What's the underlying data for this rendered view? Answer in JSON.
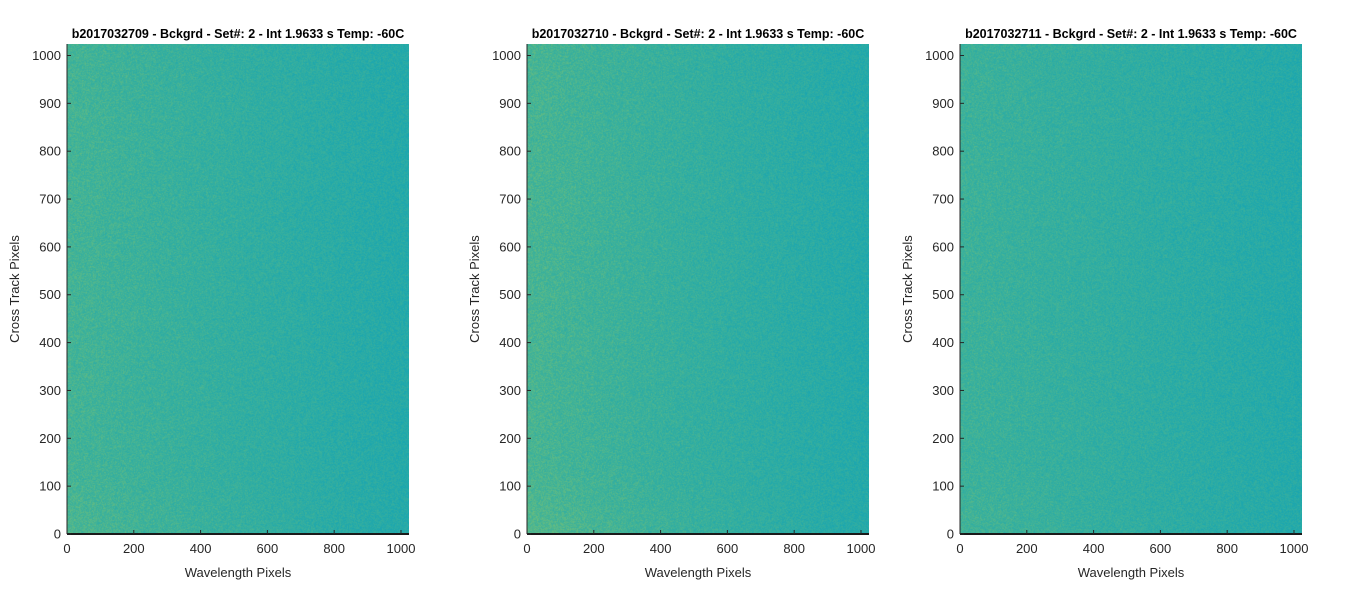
{
  "chart_data": [
    {
      "type": "heatmap",
      "title": "b2017032709 - Bckgrd - Set#: 2 - Int 1.9633 s Temp: -60C",
      "xlabel": "Wavelength Pixels",
      "ylabel": "Cross Track Pixels",
      "xlim": [
        0,
        1024
      ],
      "ylim": [
        0,
        1024
      ],
      "xticks": [
        0,
        200,
        400,
        600,
        800,
        1000
      ],
      "yticks": [
        0,
        100,
        200,
        300,
        400,
        500,
        600,
        700,
        800,
        900,
        1000
      ],
      "colormap": "parula",
      "colors": {
        "low": "#1aa6b0",
        "mid": "#3fb299",
        "high": "#7ec370"
      },
      "gradient": {
        "left_right_bias": 0.55,
        "bottom_bias": 0.08,
        "noise": 0.35
      }
    },
    {
      "type": "heatmap",
      "title": "b2017032710 - Bckgrd - Set#: 2 - Int 1.9633 s Temp: -60C",
      "xlabel": "Wavelength Pixels",
      "ylabel": "Cross Track Pixels",
      "xlim": [
        0,
        1024
      ],
      "ylim": [
        0,
        1024
      ],
      "xticks": [
        0,
        200,
        400,
        600,
        800,
        1000
      ],
      "yticks": [
        0,
        100,
        200,
        300,
        400,
        500,
        600,
        700,
        800,
        900,
        1000
      ],
      "colormap": "parula",
      "colors": {
        "low": "#1aa6b0",
        "mid": "#3fb299",
        "high": "#7ec370"
      },
      "gradient": {
        "left_right_bias": 0.6,
        "bottom_bias": 0.1,
        "noise": 0.35
      }
    },
    {
      "type": "heatmap",
      "title": "b2017032711 - Bckgrd - Set#: 2 - Int 1.9633 s Temp: -60C",
      "xlabel": "Wavelength Pixels",
      "ylabel": "Cross Track Pixels",
      "xlim": [
        0,
        1024
      ],
      "ylim": [
        0,
        1024
      ],
      "xticks": [
        0,
        200,
        400,
        600,
        800,
        1000
      ],
      "yticks": [
        0,
        100,
        200,
        300,
        400,
        500,
        600,
        700,
        800,
        900,
        1000
      ],
      "colormap": "parula",
      "colors": {
        "low": "#1aa6b0",
        "mid": "#3fb299",
        "high": "#7ec370"
      },
      "gradient": {
        "left_right_bias": 0.45,
        "bottom_bias": 0.05,
        "noise": 0.35
      }
    }
  ]
}
